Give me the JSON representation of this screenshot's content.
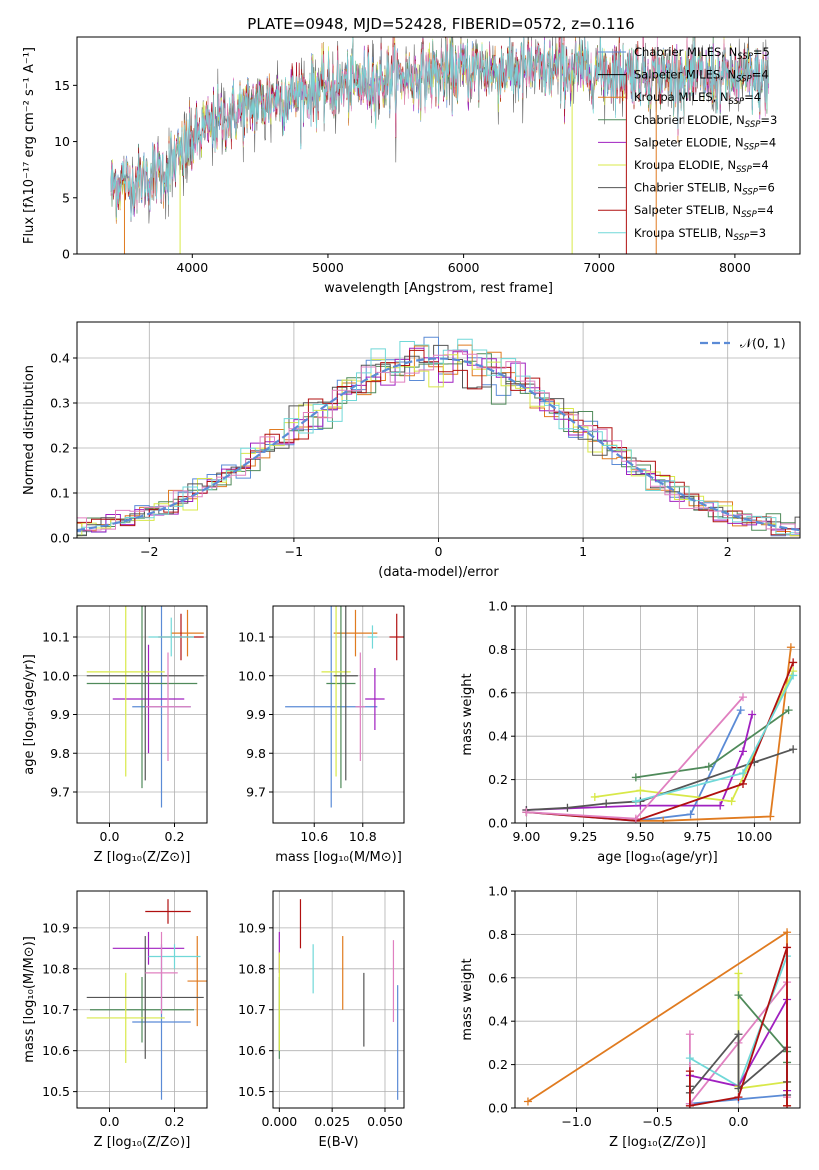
{
  "title": "PLATE=0948, MJD=52428, FIBERID=0572, z=0.116",
  "colors": {
    "chabrier_miles": "#5b8bd6",
    "salpeter_miles": "#000000",
    "kroupa_miles": "#e07b20",
    "chabrier_elodie": "#4f8a5a",
    "salpeter_elodie": "#a020c0",
    "kroupa_elodie": "#d8e848",
    "chabrier_stelib": "#555555",
    "salpeter_stelib": "#b01010",
    "kroupa_stelib": "#70d8d8",
    "pink": "#e080c0",
    "gauss": "#5b8bd6",
    "grid": "#b0b0b0"
  },
  "chart_data": [
    {
      "id": "spectrum",
      "type": "line",
      "xlabel": "wavelength [Angstrom, rest frame]",
      "ylabel": "Flux [fλ10⁻¹⁷ erg cm⁻² s⁻¹ A⁻¹]",
      "xlim": [
        3150,
        8480
      ],
      "ylim": [
        0,
        19.3
      ],
      "xticks": [
        "4000",
        "5000",
        "6000",
        "7000",
        "8000"
      ],
      "yticks": [
        "0",
        "5",
        "10",
        "15"
      ],
      "legend": [
        "Chabrier MILES, N_SSP=5",
        "Salpeter MILES, N_SSP=4",
        "Kroupa MILES, N_SSP=4",
        "Chabrier ELODIE, N_SSP=3",
        "Salpeter ELODIE, N_SSP=4",
        "Kroupa ELODIE, N_SSP=4",
        "Chabrier STELIB, N_SSP=6",
        "Salpeter STELIB, N_SSP=4",
        "Kroupa STELIB, N_SSP=3"
      ],
      "legend_placement": "right",
      "continuum": [
        [
          3400,
          6.0
        ],
        [
          3600,
          6.5
        ],
        [
          3800,
          7.5
        ],
        [
          3950,
          9.2
        ],
        [
          4050,
          10.8
        ],
        [
          4300,
          12.5
        ],
        [
          4600,
          13.8
        ],
        [
          5000,
          14.8
        ],
        [
          5500,
          15.7
        ],
        [
          6000,
          16.3
        ],
        [
          6500,
          16.4
        ],
        [
          7000,
          16.3
        ],
        [
          7500,
          15.9
        ],
        [
          8000,
          15.6
        ],
        [
          8250,
          15.4
        ]
      ]
    },
    {
      "id": "residuals",
      "type": "histogram",
      "xlabel": "(data-model)/error",
      "ylabel": "Normed distribution",
      "xlim": [
        -2.5,
        2.5
      ],
      "ylim": [
        0,
        0.48
      ],
      "xticks": [
        "−2",
        "−1",
        "0",
        "1",
        "2"
      ],
      "yticks": [
        "0.0",
        "0.1",
        "0.2",
        "0.3",
        "0.4"
      ],
      "legend": [
        "𝒩(0, 1)"
      ],
      "legend_placement": "top-right",
      "grid": true
    },
    {
      "id": "age_vs_Z",
      "type": "errorbar",
      "xlabel": "Z [log₁₀(Z/Z⊙)]",
      "ylabel": "age  [log₁₀(age/yr)]",
      "xlim": [
        -0.1,
        0.3
      ],
      "ylim": [
        9.62,
        10.18
      ],
      "xticks": [
        "0.0",
        "0.2"
      ],
      "yticks": [
        "9.7",
        "9.8",
        "9.9",
        "10.0",
        "10.1"
      ],
      "grid": true,
      "points": [
        {
          "x": 0.16,
          "y": 9.92,
          "xerr": 0.09,
          "yerr": 0.26,
          "c": "chabrier_miles"
        },
        {
          "x": 0.24,
          "y": 10.11,
          "xerr": 0.05,
          "yerr": 0.06,
          "c": "kroupa_miles"
        },
        {
          "x": 0.1,
          "y": 9.98,
          "xerr": 0.17,
          "yerr": 0.27,
          "c": "chabrier_elodie"
        },
        {
          "x": 0.12,
          "y": 9.94,
          "xerr": 0.11,
          "yerr": 0.14,
          "c": "salpeter_elodie"
        },
        {
          "x": 0.05,
          "y": 10.01,
          "xerr": 0.12,
          "yerr": 0.27,
          "c": "kroupa_elodie"
        },
        {
          "x": 0.11,
          "y": 10.0,
          "xerr": 0.18,
          "yerr": 0.27,
          "c": "chabrier_stelib"
        },
        {
          "x": 0.22,
          "y": 10.1,
          "xerr": 0.07,
          "yerr": 0.06,
          "c": "salpeter_stelib"
        },
        {
          "x": 0.19,
          "y": 10.1,
          "xerr": 0.07,
          "yerr": 0.05,
          "c": "kroupa_stelib"
        },
        {
          "x": 0.18,
          "y": 9.92,
          "xerr": 0.07,
          "yerr": 0.14,
          "c": "pink"
        }
      ]
    },
    {
      "id": "age_vs_mass",
      "type": "errorbar",
      "xlabel": "mass [log₁₀(M/M⊙)]",
      "ylabel": "",
      "xlim": [
        10.43,
        10.97
      ],
      "ylim": [
        9.62,
        10.18
      ],
      "xticks": [
        "10.6",
        "10.8"
      ],
      "yticks": [
        "9.7",
        "9.8",
        "9.9",
        "10.0",
        "10.1"
      ],
      "grid": true,
      "points": [
        {
          "x": 10.67,
          "y": 9.92,
          "xerr": 0.19,
          "yerr": 0.26,
          "c": "chabrier_miles"
        },
        {
          "x": 10.77,
          "y": 10.11,
          "xerr": 0.09,
          "yerr": 0.06,
          "c": "kroupa_miles"
        },
        {
          "x": 10.71,
          "y": 9.98,
          "xerr": 0.06,
          "yerr": 0.27,
          "c": "chabrier_elodie"
        },
        {
          "x": 10.85,
          "y": 9.94,
          "xerr": 0.04,
          "yerr": 0.08,
          "c": "salpeter_elodie"
        },
        {
          "x": 10.69,
          "y": 10.01,
          "xerr": 0.06,
          "yerr": 0.27,
          "c": "kroupa_elodie"
        },
        {
          "x": 10.73,
          "y": 10.0,
          "xerr": 0.05,
          "yerr": 0.27,
          "c": "chabrier_stelib"
        },
        {
          "x": 10.94,
          "y": 10.1,
          "xerr": 0.03,
          "yerr": 0.06,
          "c": "salpeter_stelib"
        },
        {
          "x": 10.84,
          "y": 10.1,
          "xerr": 0.02,
          "yerr": 0.03,
          "c": "kroupa_stelib"
        },
        {
          "x": 10.79,
          "y": 9.92,
          "xerr": 0.02,
          "yerr": 0.14,
          "c": "pink"
        }
      ]
    },
    {
      "id": "weight_vs_age",
      "type": "line",
      "xlabel": "age  [log₁₀(age/yr)]",
      "ylabel": "mass weight",
      "xlim": [
        8.95,
        10.2
      ],
      "ylim": [
        0,
        1.0
      ],
      "xticks": [
        "9.00",
        "9.25",
        "9.50",
        "9.75",
        "10.00"
      ],
      "yticks": [
        "0.0",
        "0.2",
        "0.4",
        "0.6",
        "0.8",
        "1.0"
      ],
      "grid": true,
      "series": [
        {
          "c": "chabrier_miles",
          "x": [
            9.0,
            9.48,
            9.72,
            9.94
          ],
          "y": [
            0.05,
            0.01,
            0.04,
            0.52
          ]
        },
        {
          "c": "kroupa_miles",
          "x": [
            9.48,
            9.6,
            10.07,
            10.16
          ],
          "y": [
            0.01,
            0.01,
            0.03,
            0.81
          ]
        },
        {
          "c": "chabrier_elodie",
          "x": [
            9.48,
            9.8,
            10.15
          ],
          "y": [
            0.21,
            0.26,
            0.52
          ]
        },
        {
          "c": "salpeter_elodie",
          "x": [
            9.0,
            9.5,
            9.85,
            9.95,
            9.99
          ],
          "y": [
            0.06,
            0.08,
            0.08,
            0.33,
            0.5
          ]
        },
        {
          "c": "kroupa_elodie",
          "x": [
            9.3,
            9.5,
            9.9,
            10.17
          ],
          "y": [
            0.12,
            0.15,
            0.1,
            0.7
          ]
        },
        {
          "c": "chabrier_stelib",
          "x": [
            9.0,
            9.18,
            9.35,
            9.5,
            10.0,
            10.17
          ],
          "y": [
            0.06,
            0.07,
            0.09,
            0.1,
            0.28,
            0.34
          ]
        },
        {
          "c": "salpeter_stelib",
          "x": [
            9.0,
            9.48,
            9.95,
            10.17
          ],
          "y": [
            0.05,
            0.01,
            0.18,
            0.74
          ]
        },
        {
          "c": "kroupa_stelib",
          "x": [
            9.48,
            9.95,
            10.17
          ],
          "y": [
            0.1,
            0.23,
            0.68
          ]
        },
        {
          "c": "pink",
          "x": [
            9.0,
            9.48,
            9.95
          ],
          "y": [
            0.05,
            0.02,
            0.58
          ]
        }
      ]
    },
    {
      "id": "mass_vs_Z",
      "type": "errorbar",
      "xlabel": "Z [log₁₀(Z/Z⊙)]",
      "ylabel": "mass [log₁₀(M/M⊙)]",
      "xlim": [
        -0.1,
        0.3
      ],
      "ylim": [
        10.46,
        10.99
      ],
      "xticks": [
        "0.0",
        "0.2"
      ],
      "yticks": [
        "10.5",
        "10.6",
        "10.7",
        "10.8",
        "10.9"
      ],
      "grid": true,
      "points": [
        {
          "x": 0.16,
          "y": 10.67,
          "xerr": 0.09,
          "yerr": 0.19,
          "c": "chabrier_miles"
        },
        {
          "x": 0.27,
          "y": 10.77,
          "xerr": 0.03,
          "yerr": 0.11,
          "c": "kroupa_miles"
        },
        {
          "x": 0.1,
          "y": 10.7,
          "xerr": 0.16,
          "yerr": 0.08,
          "c": "chabrier_elodie"
        },
        {
          "x": 0.12,
          "y": 10.85,
          "xerr": 0.11,
          "yerr": 0.04,
          "c": "salpeter_elodie"
        },
        {
          "x": 0.05,
          "y": 10.68,
          "xerr": 0.12,
          "yerr": 0.11,
          "c": "kroupa_elodie"
        },
        {
          "x": 0.11,
          "y": 10.73,
          "xerr": 0.18,
          "yerr": 0.15,
          "c": "chabrier_stelib"
        },
        {
          "x": 0.18,
          "y": 10.94,
          "xerr": 0.07,
          "yerr": 0.03,
          "c": "salpeter_stelib"
        },
        {
          "x": 0.2,
          "y": 10.83,
          "xerr": 0.08,
          "yerr": 0.03,
          "c": "kroupa_stelib"
        },
        {
          "x": 0.16,
          "y": 10.79,
          "xerr": 0.05,
          "yerr": 0.1,
          "c": "pink"
        }
      ]
    },
    {
      "id": "mass_vs_ebv",
      "type": "errorbar",
      "xlabel": "E(B-V)",
      "ylabel": "",
      "xlim": [
        -0.003,
        0.059
      ],
      "ylim": [
        10.46,
        10.99
      ],
      "xticks": [
        "0.000",
        "0.025",
        "0.050"
      ],
      "yticks": [
        "10.5",
        "10.6",
        "10.7",
        "10.8",
        "10.9"
      ],
      "grid": true,
      "points": [
        {
          "x": 0.056,
          "y": 10.62,
          "xerr": 0,
          "yerr": 0.14,
          "c": "chabrier_miles"
        },
        {
          "x": 0.03,
          "y": 10.79,
          "xerr": 0,
          "yerr": 0.09,
          "c": "kroupa_miles"
        },
        {
          "x": 0.0,
          "y": 10.68,
          "xerr": 0,
          "yerr": 0.1,
          "c": "chabrier_elodie"
        },
        {
          "x": 0.0,
          "y": 10.84,
          "xerr": 0,
          "yerr": 0.05,
          "c": "salpeter_elodie"
        },
        {
          "x": 0.0,
          "y": 10.72,
          "xerr": 0,
          "yerr": 0.12,
          "c": "kroupa_elodie"
        },
        {
          "x": 0.04,
          "y": 10.7,
          "xerr": 0,
          "yerr": 0.09,
          "c": "chabrier_stelib"
        },
        {
          "x": 0.01,
          "y": 10.91,
          "xerr": 0,
          "yerr": 0.06,
          "c": "salpeter_stelib"
        },
        {
          "x": 0.016,
          "y": 10.8,
          "xerr": 0,
          "yerr": 0.06,
          "c": "kroupa_stelib"
        },
        {
          "x": 0.054,
          "y": 10.77,
          "xerr": 0,
          "yerr": 0.1,
          "c": "pink"
        }
      ]
    },
    {
      "id": "weight_vs_Z",
      "type": "line",
      "xlabel": "Z [log₁₀(Z/Z⊙)]",
      "ylabel": "mass weight",
      "xlim": [
        -1.38,
        0.38
      ],
      "ylim": [
        0,
        1.0
      ],
      "xticks": [
        "−1.0",
        "−0.5",
        "0.0"
      ],
      "yticks": [
        "0.0",
        "0.2",
        "0.4",
        "0.6",
        "0.8",
        "1.0"
      ],
      "grid": true,
      "series": [
        {
          "c": "kroupa_miles",
          "x": [
            -1.3,
            0.3,
            0.3
          ],
          "y": [
            0.03,
            0.81,
            0.01
          ]
        },
        {
          "c": "chabrier_miles",
          "x": [
            -0.3,
            0.0,
            0.3
          ],
          "y": [
            0.02,
            0.04,
            0.06
          ]
        },
        {
          "c": "pink",
          "x": [
            -0.3,
            -0.3,
            0.0,
            0.3,
            0.3
          ],
          "y": [
            0.34,
            0.02,
            0.3,
            0.58,
            0.05
          ]
        },
        {
          "c": "kroupa_stelib",
          "x": [
            -0.3,
            0.0,
            0.3
          ],
          "y": [
            0.23,
            0.1,
            0.7
          ]
        },
        {
          "c": "salpeter_elodie",
          "x": [
            -0.3,
            0.0,
            0.3,
            0.3
          ],
          "y": [
            0.15,
            0.1,
            0.5,
            0.08
          ]
        },
        {
          "c": "kroupa_elodie",
          "x": [
            0.0,
            0.0,
            0.0,
            0.3
          ],
          "y": [
            0.62,
            0.1,
            0.09,
            0.12
          ]
        },
        {
          "c": "chabrier_elodie",
          "x": [
            0.0,
            0.3,
            0.3
          ],
          "y": [
            0.52,
            0.26,
            0.21
          ]
        },
        {
          "c": "chabrier_stelib",
          "x": [
            -0.3,
            -0.3,
            0.0,
            0.0,
            0.3,
            0.3,
            0.3
          ],
          "y": [
            0.1,
            0.07,
            0.34,
            0.09,
            0.28,
            0.06,
            0.12
          ]
        },
        {
          "c": "salpeter_stelib",
          "x": [
            -0.3,
            -0.3,
            0.0,
            0.3,
            0.3
          ],
          "y": [
            0.17,
            0.01,
            0.05,
            0.74,
            0.01
          ]
        }
      ]
    }
  ]
}
